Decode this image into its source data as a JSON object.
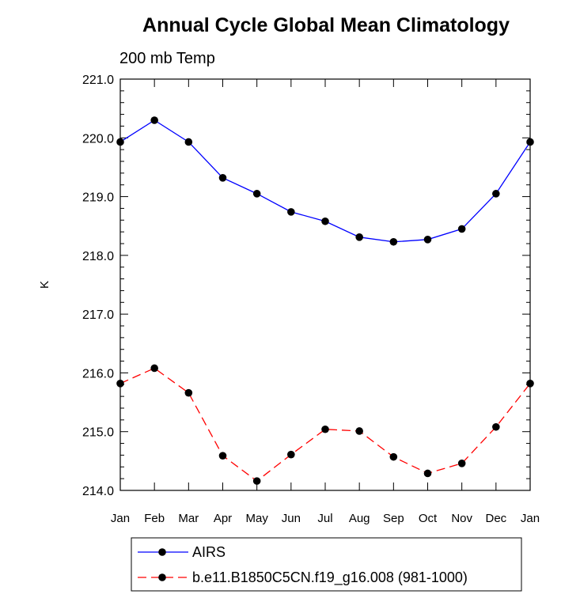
{
  "chart_data": {
    "type": "line",
    "title": "Annual Cycle Global Mean Climatology",
    "subtitle": "200 mb Temp",
    "xlabel": "",
    "ylabel": "K",
    "categories": [
      "Jan",
      "Feb",
      "Mar",
      "Apr",
      "May",
      "Jun",
      "Jul",
      "Aug",
      "Sep",
      "Oct",
      "Nov",
      "Dec",
      "Jan"
    ],
    "ylim": [
      214.0,
      221.0
    ],
    "yticks": [
      "214.0",
      "215.0",
      "216.0",
      "217.0",
      "218.0",
      "219.0",
      "220.0",
      "221.0"
    ],
    "grid": false,
    "legend_position": "bottom",
    "series": [
      {
        "name": "AIRS",
        "color": "#0000ff",
        "line_style": "solid",
        "marker": "filled-circle",
        "values": [
          219.93,
          220.3,
          219.93,
          219.32,
          219.05,
          218.74,
          218.58,
          218.31,
          218.23,
          218.27,
          218.45,
          219.05,
          219.93
        ]
      },
      {
        "name": "b.e11.B1850C5CN.f19_g16.008 (981-1000)",
        "color": "#ff0000",
        "line_style": "dashed",
        "marker": "filled-circle",
        "values": [
          215.82,
          216.08,
          215.66,
          214.59,
          214.16,
          214.61,
          215.04,
          215.01,
          214.57,
          214.29,
          214.46,
          215.08,
          215.82
        ]
      }
    ]
  }
}
